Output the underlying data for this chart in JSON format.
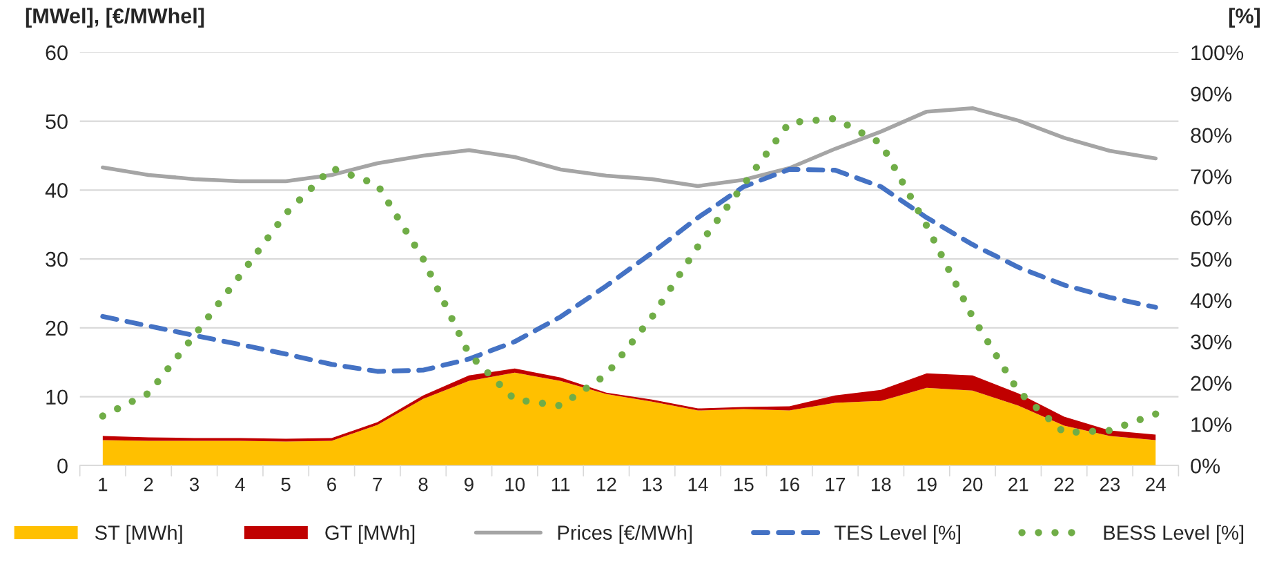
{
  "chart_data": {
    "type": "area",
    "stacked": true,
    "ylabel": "[MWel], [€/MWhel]",
    "y2label": "[%]",
    "categories": [
      "1",
      "2",
      "3",
      "4",
      "5",
      "6",
      "7",
      "8",
      "9",
      "10",
      "11",
      "12",
      "13",
      "14",
      "15",
      "16",
      "17",
      "18",
      "19",
      "20",
      "21",
      "22",
      "23",
      "24"
    ],
    "series": [
      {
        "name": "ST [MWh]",
        "color": "#ffc000",
        "values": [
          3.7,
          3.6,
          3.6,
          3.6,
          3.5,
          3.6,
          5.9,
          9.7,
          12.3,
          13.5,
          12.3,
          10.4,
          9.3,
          8.0,
          8.2,
          8.0,
          9.1,
          9.4,
          11.3,
          10.9,
          8.7,
          5.8,
          4.3,
          3.7
        ]
      },
      {
        "name": "GT [MWh]",
        "color": "#c00000",
        "values": [
          0.6,
          0.5,
          0.4,
          0.4,
          0.4,
          0.4,
          0.4,
          0.5,
          0.8,
          0.6,
          0.5,
          0.2,
          0.3,
          0.3,
          0.3,
          0.6,
          1.1,
          1.6,
          2.1,
          2.2,
          1.8,
          1.3,
          0.8,
          0.8
        ]
      },
      {
        "name": "Prices [€/MWh]",
        "type": "line",
        "line_style": "solid",
        "color": "#a5a5a5",
        "values": [
          43.3,
          42.2,
          41.6,
          41.3,
          41.3,
          42.2,
          43.9,
          45.0,
          45.8,
          44.8,
          43.0,
          42.1,
          41.6,
          40.6,
          41.5,
          43.2,
          46.0,
          48.5,
          51.4,
          51.9,
          50.1,
          47.6,
          45.7,
          44.6
        ]
      },
      {
        "name": "TES Level [%]",
        "type": "line",
        "axis": "y2",
        "line_style": "dashed",
        "color": "#4472c4",
        "values": [
          36.1,
          33.8,
          31.5,
          29.3,
          27.0,
          24.5,
          22.8,
          23.1,
          25.8,
          30.0,
          36.0,
          43.5,
          51.5,
          60.0,
          67.5,
          71.7,
          71.5,
          67.5,
          60.0,
          53.5,
          48.0,
          43.7,
          40.7,
          38.3
        ]
      },
      {
        "name": "BESS Level [%]",
        "type": "line",
        "axis": "y2",
        "line_style": "dotted",
        "color": "#70ad47",
        "values": [
          12.0,
          17.5,
          31.5,
          46.0,
          61.0,
          72.0,
          68.0,
          50.0,
          27.0,
          16.0,
          14.5,
          22.0,
          36.0,
          53.0,
          68.0,
          83.0,
          84.0,
          78.0,
          58.0,
          36.0,
          18.0,
          8.0,
          8.5,
          12.5
        ]
      }
    ],
    "ylim": [
      0,
      60
    ],
    "yticks": [
      0,
      10,
      20,
      30,
      40,
      50,
      60
    ],
    "y2lim": [
      0,
      100
    ],
    "y2ticks": [
      {
        "value": 0,
        "label": "0%"
      },
      {
        "value": 10,
        "label": "10%"
      },
      {
        "value": 20,
        "label": "20%"
      },
      {
        "value": 30,
        "label": "30%"
      },
      {
        "value": 40,
        "label": "40%"
      },
      {
        "value": 50,
        "label": "50%"
      },
      {
        "value": 60,
        "label": "60%"
      },
      {
        "value": 70,
        "label": "70%"
      },
      {
        "value": 80,
        "label": "80%"
      },
      {
        "value": 90,
        "label": "90%"
      },
      {
        "value": 100,
        "label": "100%"
      }
    ],
    "grid": "y",
    "legend": "bottom"
  }
}
